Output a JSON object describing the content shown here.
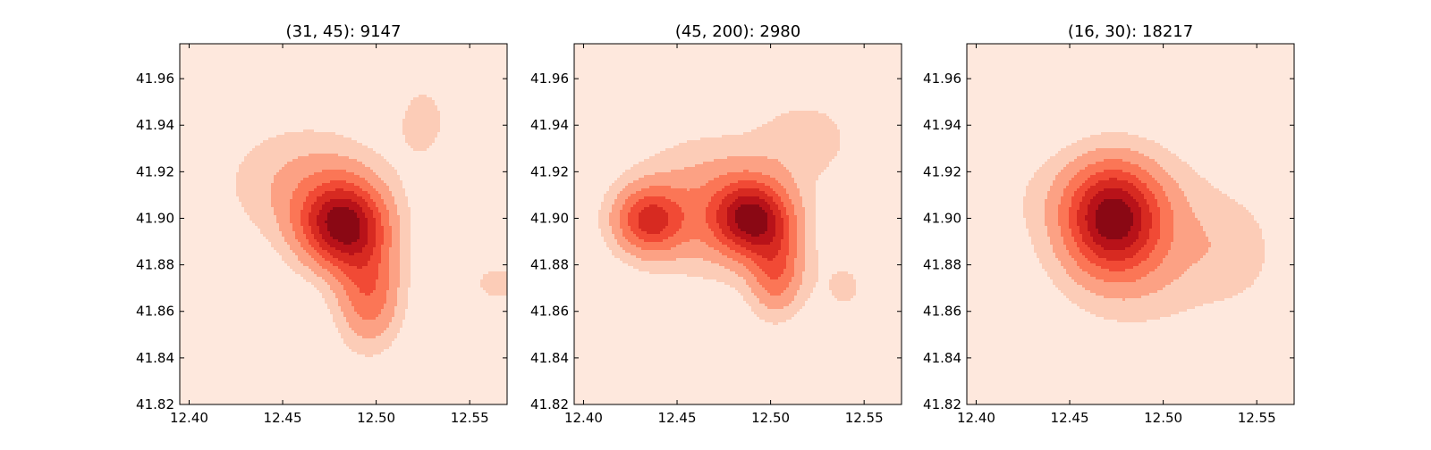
{
  "chart_data": [
    {
      "type": "contour",
      "title": "(31, 45): 9147",
      "xlim": [
        12.395,
        12.57
      ],
      "ylim": [
        41.82,
        41.975
      ],
      "xticks": [
        "12.40",
        "12.45",
        "12.50",
        "12.55"
      ],
      "yticks": [
        "41.82",
        "41.84",
        "41.86",
        "41.88",
        "41.90",
        "41.92",
        "41.94",
        "41.96"
      ],
      "density_peaks": [
        {
          "x": 12.482,
          "y": 41.897,
          "weight": 1.0,
          "sx": 0.016,
          "sy": 0.013
        },
        {
          "x": 12.496,
          "y": 41.868,
          "weight": 0.5,
          "sx": 0.012,
          "sy": 0.016
        },
        {
          "x": 12.462,
          "y": 41.915,
          "weight": 0.25,
          "sx": 0.03,
          "sy": 0.018
        },
        {
          "x": 12.525,
          "y": 41.942,
          "weight": 0.17,
          "sx": 0.01,
          "sy": 0.012
        },
        {
          "x": 12.565,
          "y": 41.872,
          "weight": 0.13,
          "sx": 0.02,
          "sy": 0.012
        }
      ]
    },
    {
      "type": "contour",
      "title": "(45, 200): 2980",
      "xlim": [
        12.395,
        12.57
      ],
      "ylim": [
        41.82,
        41.975
      ],
      "xticks": [
        "12.40",
        "12.45",
        "12.50",
        "12.55"
      ],
      "yticks": [
        "41.82",
        "41.84",
        "41.86",
        "41.88",
        "41.90",
        "41.92",
        "41.94",
        "41.96"
      ],
      "density_peaks": [
        {
          "x": 12.49,
          "y": 41.9,
          "weight": 1.0,
          "sx": 0.014,
          "sy": 0.011
        },
        {
          "x": 12.435,
          "y": 41.899,
          "weight": 0.75,
          "sx": 0.013,
          "sy": 0.01
        },
        {
          "x": 12.503,
          "y": 41.877,
          "weight": 0.55,
          "sx": 0.01,
          "sy": 0.013
        },
        {
          "x": 12.47,
          "y": 41.905,
          "weight": 0.4,
          "sx": 0.03,
          "sy": 0.02
        },
        {
          "x": 12.52,
          "y": 41.935,
          "weight": 0.2,
          "sx": 0.018,
          "sy": 0.012
        },
        {
          "x": 12.54,
          "y": 41.87,
          "weight": 0.15,
          "sx": 0.012,
          "sy": 0.012
        }
      ]
    },
    {
      "type": "contour",
      "title": "(16, 30): 18217",
      "xlim": [
        12.395,
        12.57
      ],
      "ylim": [
        41.82,
        41.975
      ],
      "xticks": [
        "12.40",
        "12.45",
        "12.50",
        "12.55"
      ],
      "yticks": [
        "41.82",
        "41.84",
        "41.86",
        "41.88",
        "41.90",
        "41.92",
        "41.94",
        "41.96"
      ],
      "density_peaks": [
        {
          "x": 12.473,
          "y": 41.9,
          "weight": 1.0,
          "sx": 0.017,
          "sy": 0.016
        },
        {
          "x": 12.49,
          "y": 41.89,
          "weight": 0.3,
          "sx": 0.035,
          "sy": 0.025
        },
        {
          "x": 12.54,
          "y": 41.885,
          "weight": 0.12,
          "sx": 0.015,
          "sy": 0.015
        },
        {
          "x": 12.45,
          "y": 41.91,
          "weight": 0.1,
          "sx": 0.03,
          "sy": 0.015
        }
      ]
    }
  ],
  "colors": {
    "levels": [
      "#fee8dd",
      "#fcccb7",
      "#fca184",
      "#fb7656",
      "#f14a35",
      "#d72a21",
      "#b81219",
      "#8a0814"
    ]
  }
}
